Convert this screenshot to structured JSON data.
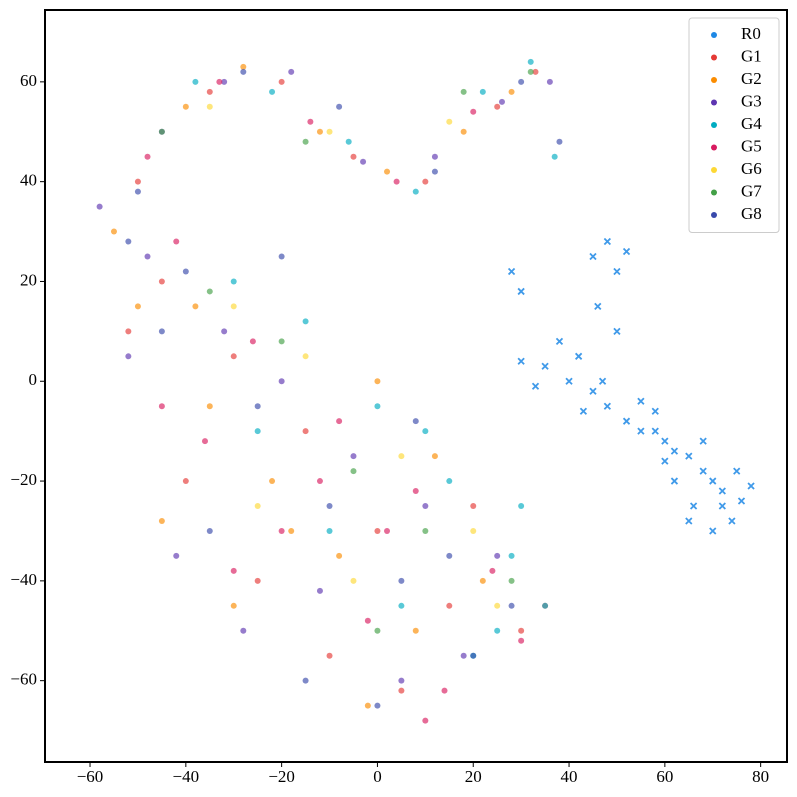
{
  "chart_data": {
    "type": "scatter",
    "xlim": [
      -69.4,
      85.5
    ],
    "ylim": [
      -76.3,
      74.4
    ],
    "xticks": [
      {
        "value": -60,
        "label": "−60"
      },
      {
        "value": -40,
        "label": "−40"
      },
      {
        "value": -20,
        "label": "−20"
      },
      0,
      20,
      40,
      60,
      80
    ],
    "yticks": [
      {
        "value": -60,
        "label": "−60"
      },
      {
        "value": -40,
        "label": "−40"
      },
      {
        "value": -20,
        "label": "−20"
      },
      0,
      20,
      40,
      60
    ],
    "legend": "upper right",
    "series": [
      {
        "name": "R0",
        "color": "#1e88e5",
        "marker": "x",
        "x": [
          45,
          48,
          50,
          52,
          46,
          38,
          42,
          35,
          30,
          33,
          40,
          45,
          48,
          52,
          55,
          58,
          60,
          62,
          65,
          68,
          70,
          72,
          75,
          78,
          74,
          70,
          66,
          62,
          58,
          55,
          50,
          47,
          43,
          68,
          72,
          65,
          60,
          76,
          28,
          30
        ],
        "values": [
          25,
          28,
          22,
          26,
          15,
          8,
          5,
          3,
          4,
          -1,
          0,
          -2,
          -5,
          -8,
          -10,
          -6,
          -12,
          -14,
          -15,
          -18,
          -20,
          -22,
          -18,
          -21,
          -28,
          -30,
          -25,
          -20,
          -10,
          -4,
          10,
          0,
          -6,
          -12,
          -25,
          -28,
          -16,
          -24,
          22,
          18
        ]
      },
      {
        "name": "G1",
        "color": "#e53935",
        "marker": "o",
        "x": [
          -50,
          -35,
          -20,
          -5,
          10,
          25,
          33,
          -45,
          -30,
          -15,
          0,
          15,
          30,
          -40,
          -25,
          -10,
          5,
          20,
          35,
          -52
        ],
        "values": [
          40,
          58,
          60,
          45,
          40,
          55,
          62,
          20,
          5,
          -10,
          -30,
          -45,
          -50,
          -20,
          -40,
          -55,
          -62,
          -25,
          -45,
          10
        ]
      },
      {
        "name": "G2",
        "color": "#fb8c00",
        "marker": "o",
        "x": [
          -55,
          -40,
          -28,
          -12,
          2,
          18,
          28,
          -50,
          -35,
          -22,
          -8,
          8,
          22,
          -45,
          -30,
          -18,
          -2,
          12,
          -38,
          0
        ],
        "values": [
          30,
          55,
          63,
          50,
          42,
          50,
          58,
          15,
          -5,
          -20,
          -35,
          -50,
          -40,
          -28,
          -45,
          -30,
          -65,
          -15,
          15,
          0
        ]
      },
      {
        "name": "G3",
        "color": "#5e35b1",
        "marker": "o",
        "x": [
          -58,
          -45,
          -32,
          -18,
          -3,
          12,
          26,
          36,
          -48,
          -32,
          -20,
          -5,
          10,
          25,
          -42,
          -28,
          -12,
          5,
          18,
          -52
        ],
        "values": [
          35,
          50,
          60,
          62,
          44,
          45,
          56,
          60,
          25,
          10,
          0,
          -15,
          -25,
          -35,
          -35,
          -50,
          -42,
          -60,
          -55,
          5
        ]
      },
      {
        "name": "G4",
        "color": "#00acc1",
        "marker": "o",
        "x": [
          -38,
          -22,
          -6,
          8,
          22,
          32,
          37,
          -30,
          -15,
          0,
          15,
          30,
          35,
          25,
          20,
          -10,
          5,
          28,
          -25,
          10
        ],
        "values": [
          60,
          58,
          48,
          38,
          58,
          64,
          45,
          20,
          12,
          -5,
          -20,
          -25,
          -45,
          -50,
          -55,
          -30,
          -45,
          -35,
          -10,
          -10
        ]
      },
      {
        "name": "G5",
        "color": "#d81b60",
        "marker": "o",
        "x": [
          -48,
          -33,
          -14,
          4,
          20,
          -42,
          -26,
          -8,
          8,
          24,
          -36,
          -20,
          -2,
          14,
          30,
          -30,
          -12,
          10,
          2,
          -45
        ],
        "values": [
          45,
          60,
          52,
          40,
          54,
          28,
          8,
          -8,
          -22,
          -38,
          -12,
          -30,
          -48,
          -62,
          -52,
          -38,
          -20,
          -68,
          -30,
          -5
        ]
      },
      {
        "name": "G6",
        "color": "#fdd835",
        "marker": "o",
        "x": [
          -35,
          -10,
          15,
          -30,
          -15,
          5,
          20,
          -5,
          25,
          -25
        ],
        "values": [
          55,
          50,
          52,
          15,
          5,
          -15,
          -30,
          -40,
          -45,
          -25
        ]
      },
      {
        "name": "G7",
        "color": "#43a047",
        "marker": "o",
        "x": [
          -45,
          -15,
          18,
          32,
          -35,
          -20,
          -5,
          10,
          0,
          28
        ],
        "values": [
          50,
          48,
          58,
          62,
          18,
          8,
          -18,
          -30,
          -50,
          -40
        ]
      },
      {
        "name": "G8",
        "color": "#3949ab",
        "marker": "o",
        "x": [
          -50,
          -28,
          -8,
          12,
          30,
          38,
          -45,
          -25,
          -10,
          5,
          20,
          -35,
          -15,
          0,
          15,
          28,
          -40,
          -20,
          8,
          -52
        ],
        "values": [
          38,
          62,
          55,
          42,
          60,
          48,
          10,
          -5,
          -25,
          -40,
          -55,
          -30,
          -60,
          -65,
          -35,
          -45,
          22,
          25,
          -8,
          28
        ]
      }
    ]
  }
}
